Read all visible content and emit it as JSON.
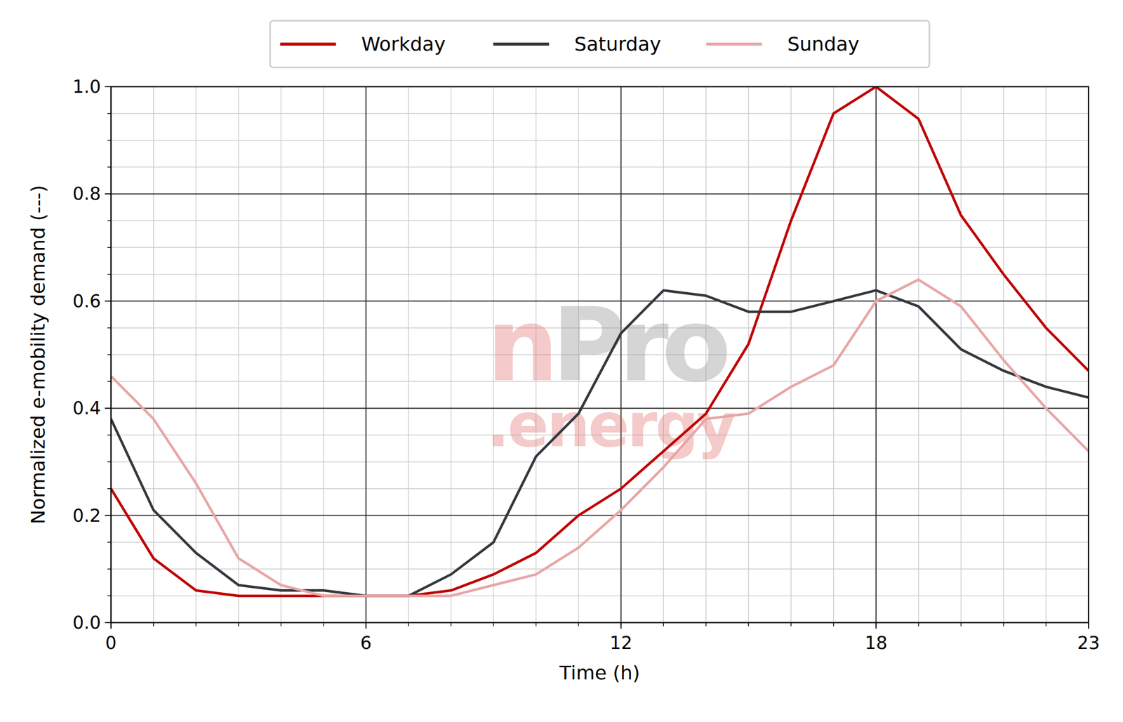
{
  "chart_data": {
    "type": "line",
    "x_label": "Time (h)",
    "y_label": "Normalized e-mobility demand (---)",
    "annotations": [
      "n",
      "Pro",
      ".energy"
    ],
    "x": [
      0,
      1,
      2,
      3,
      4,
      5,
      6,
      7,
      8,
      9,
      10,
      11,
      12,
      13,
      14,
      15,
      16,
      17,
      18,
      19,
      20,
      21,
      22,
      23
    ],
    "series": [
      {
        "name": "Workday",
        "color": "#c00000",
        "values": [
          0.25,
          0.12,
          0.06,
          0.05,
          0.05,
          0.05,
          0.05,
          0.05,
          0.06,
          0.09,
          0.13,
          0.2,
          0.25,
          0.32,
          0.39,
          0.52,
          0.75,
          0.95,
          1.0,
          0.94,
          0.76,
          0.65,
          0.55,
          0.47
        ]
      },
      {
        "name": "Saturday",
        "color": "#33383e",
        "values": [
          0.38,
          0.21,
          0.13,
          0.07,
          0.06,
          0.06,
          0.05,
          0.05,
          0.09,
          0.15,
          0.31,
          0.39,
          0.54,
          0.62,
          0.61,
          0.58,
          0.58,
          0.6,
          0.62,
          0.59,
          0.51,
          0.47,
          0.44,
          0.42
        ]
      },
      {
        "name": "Sunday",
        "color": "#e8a6a6",
        "values": [
          0.46,
          0.38,
          0.26,
          0.12,
          0.07,
          0.05,
          0.05,
          0.05,
          0.05,
          0.07,
          0.09,
          0.14,
          0.21,
          0.29,
          0.38,
          0.39,
          0.44,
          0.48,
          0.6,
          0.64,
          0.59,
          0.49,
          0.4,
          0.32
        ]
      }
    ],
    "xlim": [
      0,
      23
    ],
    "xticks": [
      0,
      6,
      12,
      18,
      23
    ],
    "ylim": [
      0,
      1
    ],
    "yticks": [
      {
        "value": 0,
        "label": "0.0"
      },
      0.2,
      0.4,
      0.6,
      0.8,
      {
        "value": 1,
        "label": "1.0"
      }
    ],
    "grid": true,
    "legend": "top"
  }
}
